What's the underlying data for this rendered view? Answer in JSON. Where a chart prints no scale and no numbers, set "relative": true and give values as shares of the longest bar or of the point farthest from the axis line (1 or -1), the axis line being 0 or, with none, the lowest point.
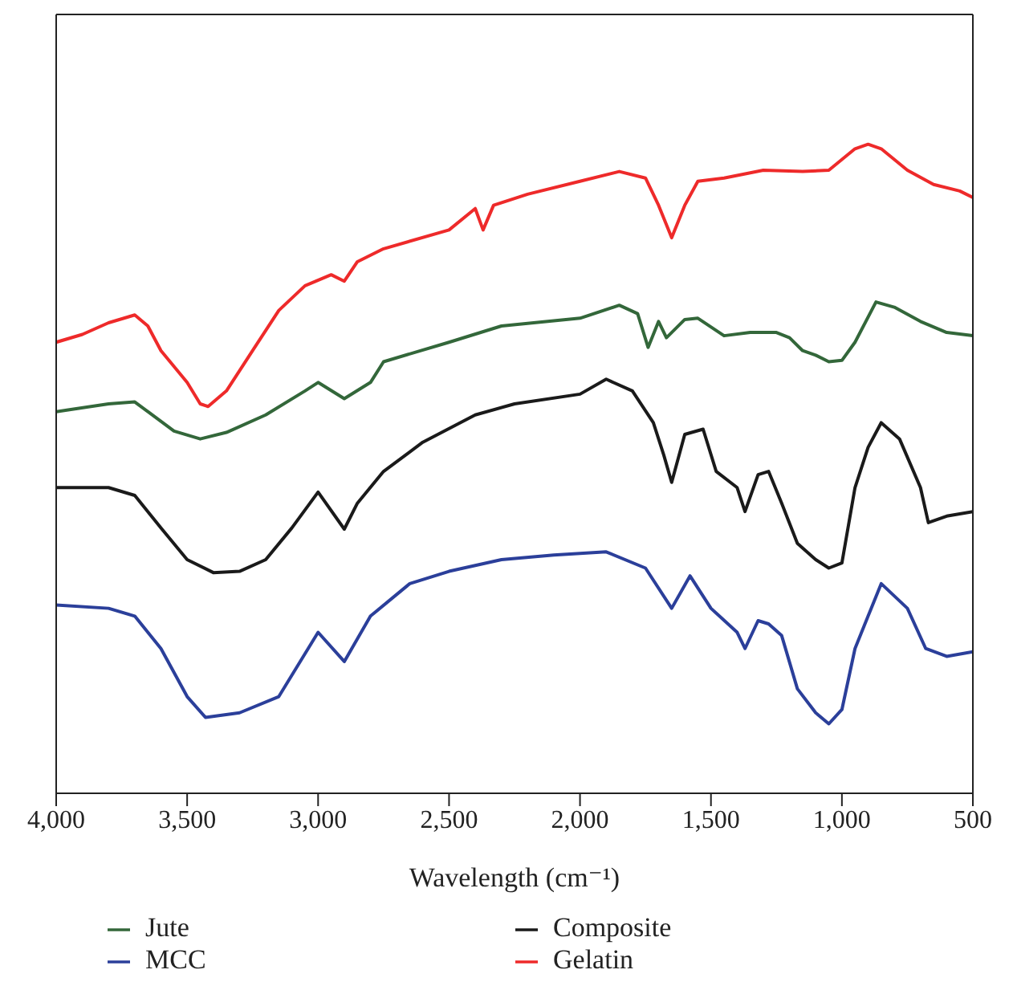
{
  "chart_data": {
    "type": "line",
    "xlabel": "Wavelength (cm⁻¹)",
    "relative": true,
    "xlim": [
      4000,
      500
    ],
    "xticks": [
      {
        "value": 4000,
        "label": "4,000"
      },
      {
        "value": 3500,
        "label": "3,500"
      },
      {
        "value": 3000,
        "label": "3,000"
      },
      {
        "value": 2500,
        "label": "2,500"
      },
      {
        "value": 2000,
        "label": "2,000"
      },
      {
        "value": 1500,
        "label": "1,500"
      },
      {
        "value": 1000,
        "label": "1,000"
      },
      {
        "value": 500,
        "label": "500"
      }
    ],
    "legend": "bottom",
    "marker": "none",
    "line_style": "solid",
    "series": [
      {
        "name": "Jute",
        "color": "#33673a",
        "x": [
          4000,
          3800,
          3700,
          3650,
          3550,
          3450,
          3350,
          3200,
          3050,
          3000,
          2900,
          2800,
          2750,
          2500,
          2300,
          2000,
          1850,
          1780,
          1740,
          1700,
          1670,
          1600,
          1550,
          1450,
          1350,
          1250,
          1200,
          1150,
          1100,
          1050,
          1000,
          950,
          870,
          800,
          700,
          600,
          500
        ],
        "values": [
          0.588,
          0.6,
          0.603,
          0.588,
          0.558,
          0.546,
          0.556,
          0.583,
          0.62,
          0.633,
          0.608,
          0.633,
          0.665,
          0.695,
          0.72,
          0.732,
          0.752,
          0.739,
          0.687,
          0.727,
          0.702,
          0.73,
          0.732,
          0.705,
          0.71,
          0.71,
          0.702,
          0.682,
          0.675,
          0.665,
          0.667,
          0.695,
          0.757,
          0.749,
          0.727,
          0.71,
          0.705
        ]
      },
      {
        "name": "Composite",
        "color": "#1a1a1a",
        "x": [
          4000,
          3800,
          3700,
          3600,
          3500,
          3400,
          3300,
          3200,
          3100,
          3000,
          2900,
          2850,
          2750,
          2600,
          2400,
          2250,
          2000,
          1900,
          1800,
          1720,
          1680,
          1650,
          1600,
          1530,
          1480,
          1400,
          1370,
          1320,
          1280,
          1230,
          1170,
          1100,
          1050,
          1000,
          950,
          900,
          850,
          780,
          700,
          670,
          600,
          500
        ],
        "values": [
          0.471,
          0.471,
          0.459,
          0.409,
          0.36,
          0.34,
          0.342,
          0.36,
          0.409,
          0.464,
          0.407,
          0.447,
          0.496,
          0.541,
          0.583,
          0.6,
          0.615,
          0.638,
          0.62,
          0.571,
          0.521,
          0.479,
          0.553,
          0.561,
          0.496,
          0.471,
          0.434,
          0.491,
          0.496,
          0.447,
          0.385,
          0.36,
          0.347,
          0.355,
          0.471,
          0.533,
          0.571,
          0.546,
          0.471,
          0.417,
          0.427,
          0.434
        ]
      },
      {
        "name": "MCC",
        "color": "#2b3f9a",
        "x": [
          4000,
          3800,
          3700,
          3600,
          3500,
          3430,
          3300,
          3150,
          3000,
          2900,
          2800,
          2650,
          2500,
          2300,
          2100,
          1900,
          1750,
          1650,
          1580,
          1500,
          1400,
          1370,
          1320,
          1280,
          1230,
          1170,
          1100,
          1050,
          1000,
          950,
          900,
          850,
          750,
          680,
          600,
          500
        ],
        "values": [
          0.29,
          0.285,
          0.273,
          0.223,
          0.149,
          0.117,
          0.124,
          0.149,
          0.248,
          0.203,
          0.273,
          0.323,
          0.342,
          0.36,
          0.367,
          0.372,
          0.347,
          0.285,
          0.335,
          0.285,
          0.248,
          0.223,
          0.266,
          0.261,
          0.243,
          0.161,
          0.124,
          0.107,
          0.129,
          0.223,
          0.273,
          0.323,
          0.285,
          0.223,
          0.211,
          0.218
        ]
      },
      {
        "name": "Gelatin",
        "color": "#ee2a2a",
        "x": [
          4000,
          3900,
          3800,
          3700,
          3650,
          3600,
          3500,
          3450,
          3420,
          3350,
          3250,
          3150,
          3050,
          2950,
          2900,
          2850,
          2750,
          2500,
          2400,
          2370,
          2330,
          2200,
          2000,
          1850,
          1750,
          1700,
          1650,
          1600,
          1550,
          1450,
          1300,
          1150,
          1050,
          950,
          900,
          850,
          750,
          650,
          550,
          500
        ],
        "values": [
          0.695,
          0.707,
          0.725,
          0.737,
          0.72,
          0.682,
          0.633,
          0.6,
          0.596,
          0.62,
          0.682,
          0.744,
          0.782,
          0.799,
          0.789,
          0.819,
          0.839,
          0.868,
          0.901,
          0.868,
          0.906,
          0.923,
          0.943,
          0.958,
          0.948,
          0.906,
          0.856,
          0.906,
          0.943,
          0.948,
          0.96,
          0.958,
          0.96,
          0.993,
          1.0,
          0.993,
          0.96,
          0.938,
          0.928,
          0.918
        ]
      }
    ]
  }
}
